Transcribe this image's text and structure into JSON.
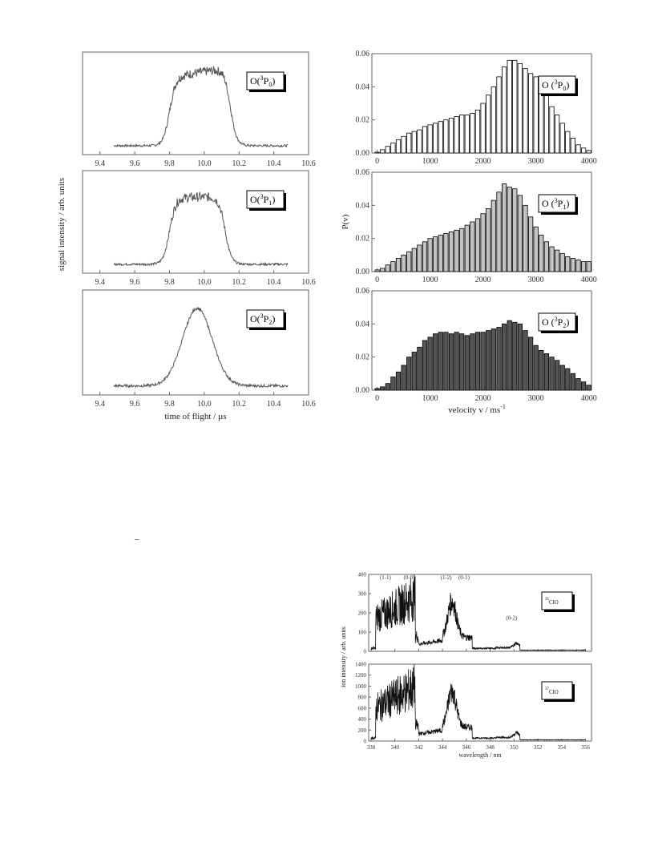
{
  "chart_data": [
    {
      "id": "tof1",
      "type": "line",
      "xlim": [
        9.3,
        10.6
      ],
      "ylim": [
        0,
        1.15
      ],
      "xticks": [
        "9.4",
        "9.6",
        "9.8",
        "10.0",
        "10.2",
        "10.4",
        "10.6"
      ],
      "legend": {
        "pre": "O(",
        "sup": "3",
        "mid": "P",
        "sub": "0",
        "post": ")"
      },
      "profile": {
        "base": 0.1,
        "rise": 9.8,
        "fall": 10.15,
        "peak": 0.9,
        "shape": "flat"
      }
    },
    {
      "id": "tof2",
      "type": "line",
      "xlim": [
        9.3,
        10.6
      ],
      "ylim": [
        0,
        1.15
      ],
      "xticks": [
        "9.4",
        "9.6",
        "9.8",
        "10.0",
        "10.2",
        "10.4",
        "10.6"
      ],
      "legend": {
        "pre": "O(",
        "sup": "3",
        "mid": "P",
        "sub": "1",
        "post": ")"
      },
      "profile": {
        "base": 0.1,
        "rise": 9.8,
        "fall": 10.12,
        "peak": 0.85,
        "shape": "flat"
      }
    },
    {
      "id": "tof3",
      "type": "line",
      "xlim": [
        9.3,
        10.6
      ],
      "ylim": [
        0,
        1.15
      ],
      "xticks": [
        "9.4",
        "9.6",
        "9.8",
        "10.0",
        "10.2",
        "10.4",
        "10.6"
      ],
      "xlabel": "time of flight / µs",
      "legend": {
        "pre": "O(",
        "sup": "3",
        "mid": "P",
        "sub": "2",
        "post": ")"
      },
      "profile": {
        "base": 0.1,
        "rise": 9.8,
        "fall": 10.12,
        "peak": 0.95,
        "shape": "peak"
      }
    },
    {
      "id": "pv1",
      "type": "bar",
      "xlim": [
        -100,
        4050
      ],
      "ylim": [
        0,
        0.06
      ],
      "xticks": [
        "0",
        "1000",
        "2000",
        "3000",
        "4000"
      ],
      "yticks": [
        "0.00",
        "0.02",
        "0.04",
        "0.06"
      ],
      "legend": {
        "pre": "O (",
        "sup": "3",
        "mid": "P",
        "sub": "0",
        "post": ")"
      },
      "bar_color": "#ffffff",
      "bar_width": 100,
      "x": [
        0,
        100,
        200,
        300,
        400,
        500,
        600,
        700,
        800,
        900,
        1000,
        1100,
        1200,
        1300,
        1400,
        1500,
        1600,
        1700,
        1800,
        1900,
        2000,
        2100,
        2200,
        2300,
        2400,
        2500,
        2600,
        2700,
        2800,
        2900,
        3000,
        3100,
        3200,
        3300,
        3400,
        3500,
        3600,
        3700,
        3800,
        3900,
        4000
      ],
      "values": [
        0.0005,
        0.002,
        0.004,
        0.006,
        0.008,
        0.01,
        0.012,
        0.013,
        0.014,
        0.016,
        0.017,
        0.018,
        0.019,
        0.02,
        0.021,
        0.022,
        0.023,
        0.023,
        0.024,
        0.026,
        0.03,
        0.035,
        0.04,
        0.046,
        0.052,
        0.056,
        0.056,
        0.054,
        0.051,
        0.048,
        0.046,
        0.041,
        0.035,
        0.028,
        0.023,
        0.018,
        0.013,
        0.009,
        0.005,
        0.003,
        0.0015
      ]
    },
    {
      "id": "pv2",
      "type": "bar",
      "xlim": [
        -100,
        4050
      ],
      "ylim": [
        0,
        0.06
      ],
      "xticks": [
        "0",
        "1000",
        "2000",
        "3000",
        "4000"
      ],
      "yticks": [
        "0.00",
        "0.02",
        "0.04",
        "0.06"
      ],
      "ylabel": "P(v)",
      "legend": {
        "pre": "O (",
        "sup": "3",
        "mid": "P",
        "sub": "1",
        "post": ")"
      },
      "bar_color": "#c4c4c4",
      "bar_width": 100,
      "x": [
        0,
        100,
        200,
        300,
        400,
        500,
        600,
        700,
        800,
        900,
        1000,
        1100,
        1200,
        1300,
        1400,
        1500,
        1600,
        1700,
        1800,
        1900,
        2000,
        2100,
        2200,
        2300,
        2400,
        2500,
        2600,
        2700,
        2800,
        2900,
        3000,
        3100,
        3200,
        3300,
        3400,
        3500,
        3600,
        3700,
        3800,
        3900,
        4000
      ],
      "values": [
        0.001,
        0.002,
        0.004,
        0.006,
        0.008,
        0.01,
        0.012,
        0.014,
        0.016,
        0.018,
        0.02,
        0.021,
        0.022,
        0.023,
        0.024,
        0.025,
        0.026,
        0.028,
        0.03,
        0.032,
        0.035,
        0.038,
        0.043,
        0.048,
        0.053,
        0.051,
        0.05,
        0.046,
        0.04,
        0.033,
        0.027,
        0.022,
        0.018,
        0.015,
        0.013,
        0.011,
        0.009,
        0.008,
        0.007,
        0.006,
        0.006
      ]
    },
    {
      "id": "pv3",
      "type": "bar",
      "xlim": [
        -100,
        4050
      ],
      "ylim": [
        0,
        0.06
      ],
      "xticks": [
        "0",
        "1000",
        "2000",
        "3000",
        "4000"
      ],
      "yticks": [
        "0.00",
        "0.02",
        "0.04",
        "0.06"
      ],
      "xlabel": "velocity v / ms",
      "xlabel_sup": "-1",
      "legend": {
        "pre": "O (",
        "sup": "3",
        "mid": "P",
        "sub": "2",
        "post": ")"
      },
      "bar_color": "#555555",
      "bar_width": 100,
      "x": [
        0,
        100,
        200,
        300,
        400,
        500,
        600,
        700,
        800,
        900,
        1000,
        1100,
        1200,
        1300,
        1400,
        1500,
        1600,
        1700,
        1800,
        1900,
        2000,
        2100,
        2200,
        2300,
        2400,
        2500,
        2600,
        2700,
        2800,
        2900,
        3000,
        3100,
        3200,
        3300,
        3400,
        3500,
        3600,
        3700,
        3800,
        3900,
        4000
      ],
      "values": [
        0.001,
        0.002,
        0.004,
        0.008,
        0.011,
        0.015,
        0.02,
        0.023,
        0.026,
        0.03,
        0.032,
        0.034,
        0.035,
        0.035,
        0.034,
        0.035,
        0.034,
        0.033,
        0.034,
        0.035,
        0.035,
        0.036,
        0.037,
        0.038,
        0.04,
        0.042,
        0.041,
        0.04,
        0.036,
        0.032,
        0.027,
        0.024,
        0.022,
        0.02,
        0.018,
        0.015,
        0.013,
        0.01,
        0.007,
        0.005,
        0.003
      ]
    },
    {
      "id": "spec1",
      "type": "line",
      "xlim": [
        337.8,
        356.5
      ],
      "ylim": [
        0,
        400
      ],
      "xticks": [
        "338",
        "340",
        "342",
        "344",
        "346",
        "348",
        "350",
        "352",
        "354",
        "356"
      ],
      "yticks": [
        "0",
        "100",
        "200",
        "300",
        "400"
      ],
      "legend": {
        "pre": "",
        "sup": "35",
        "mid": "ClO",
        "sub": "",
        "post": ""
      },
      "annotations": [
        {
          "text": "(1-1)",
          "x": 339.2,
          "y": 375
        },
        {
          "text": "(0-0)",
          "x": 341.2,
          "y": 375
        },
        {
          "text": "(1-2)",
          "x": 344.3,
          "y": 375
        },
        {
          "text": "(0-1)",
          "x": 345.8,
          "y": 375
        },
        {
          "text": "(0-2)",
          "x": 349.8,
          "y": 165
        }
      ]
    },
    {
      "id": "spec2",
      "type": "line",
      "xlim": [
        337.8,
        356.5
      ],
      "ylim": [
        0,
        1400
      ],
      "xticks": [
        "338",
        "340",
        "342",
        "344",
        "346",
        "348",
        "350",
        "352",
        "354",
        "356"
      ],
      "yticks": [
        "0",
        "200",
        "400",
        "600",
        "800",
        "1000",
        "1200",
        "1400"
      ],
      "xlabel": "wavelength / nm",
      "legend": {
        "pre": "",
        "sup": "37",
        "mid": "ClO",
        "sub": "",
        "post": ""
      }
    }
  ],
  "labels": {
    "tof_ylabel": "signal intensity / arb. units",
    "spec_ylabel": "ion intensity / arb. units",
    "dash": "–"
  }
}
